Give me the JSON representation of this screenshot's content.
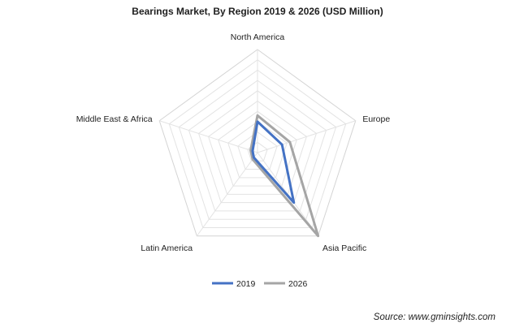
{
  "chart_data": {
    "type": "radar",
    "title": "Bearings Market, By Region 2019 & 2026 (USD Million)",
    "categories": [
      "North America",
      "Europe",
      "Asia Pacific",
      "Latin America",
      "Middle East & Africa"
    ],
    "series": [
      {
        "name": "2019",
        "color": "#4472c4",
        "values": [
          30000,
          25000,
          60000,
          6000,
          5000
        ]
      },
      {
        "name": "2026",
        "color": "#a5a5a5",
        "values": [
          36000,
          33000,
          100000,
          8000,
          7000
        ]
      }
    ],
    "rmax": 100000,
    "grid_levels": 10,
    "grid": true,
    "legend_position": "bottom"
  },
  "source": "Source: www.gminsights.com"
}
